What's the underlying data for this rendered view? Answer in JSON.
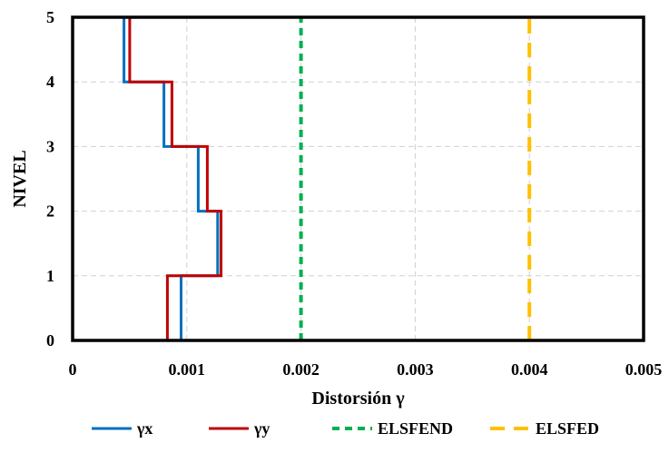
{
  "chart_data": {
    "type": "line",
    "title": "",
    "xlabel": "Distorsión γ",
    "ylabel": "NIVEL",
    "xlim": [
      0,
      0.005
    ],
    "ylim": [
      0,
      5
    ],
    "x_ticks": [
      "0",
      "0.001",
      "0.002",
      "0.003",
      "0.004",
      "0.005"
    ],
    "y_ticks": [
      "0",
      "1",
      "2",
      "3",
      "4",
      "5"
    ],
    "grid": "dashed vertical and horizontal",
    "legend_position": "bottom",
    "series": [
      {
        "name": "γx",
        "color": "#0070C0",
        "style": "solid",
        "points": [
          [
            0.00095,
            0
          ],
          [
            0.00095,
            1
          ],
          [
            0.00127,
            1
          ],
          [
            0.00127,
            2
          ],
          [
            0.0011,
            2
          ],
          [
            0.0011,
            3
          ],
          [
            0.0008,
            3
          ],
          [
            0.0008,
            4
          ],
          [
            0.00045,
            4
          ],
          [
            0.00045,
            5
          ],
          [
            0,
            5
          ]
        ]
      },
      {
        "name": "γy",
        "color": "#C00000",
        "style": "solid",
        "points": [
          [
            0.00083,
            0
          ],
          [
            0.00083,
            1
          ],
          [
            0.0013,
            1
          ],
          [
            0.0013,
            2
          ],
          [
            0.00118,
            2
          ],
          [
            0.00118,
            3
          ],
          [
            0.00087,
            3
          ],
          [
            0.00087,
            4
          ],
          [
            0.0005,
            4
          ],
          [
            0.0005,
            5
          ],
          [
            0,
            5
          ]
        ]
      },
      {
        "name": "ELSFEND",
        "color": "#00B050",
        "style": "dashed",
        "points": [
          [
            0.002,
            0
          ],
          [
            0.002,
            5
          ]
        ]
      },
      {
        "name": "ELSFED",
        "color": "#FFC000",
        "style": "long-dashed",
        "points": [
          [
            0.004,
            0
          ],
          [
            0.004,
            5
          ]
        ]
      }
    ]
  }
}
